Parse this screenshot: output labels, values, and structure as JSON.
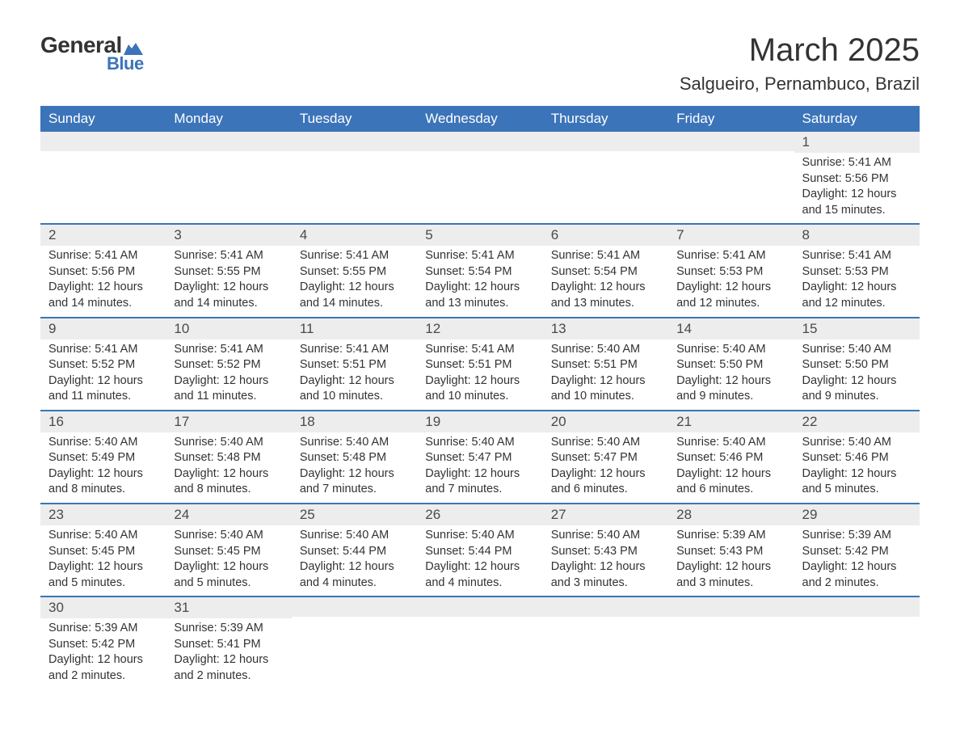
{
  "logo": {
    "text1": "General",
    "text2": "Blue",
    "shape_color": "#3b74b9"
  },
  "title": "March 2025",
  "location": "Salgueiro, Pernambuco, Brazil",
  "colors": {
    "header_bg": "#3b74b9",
    "header_text": "#ffffff",
    "daynum_bg": "#ededed",
    "row_border": "#3b74b9",
    "body_text": "#333333"
  },
  "typography": {
    "title_fontsize": 40,
    "location_fontsize": 22,
    "dayhead_fontsize": 17,
    "daynum_fontsize": 17,
    "body_fontsize": 14.5,
    "font_family": "Arial, Helvetica, sans-serif"
  },
  "day_headers": [
    "Sunday",
    "Monday",
    "Tuesday",
    "Wednesday",
    "Thursday",
    "Friday",
    "Saturday"
  ],
  "weeks": [
    [
      {
        "n": "",
        "sunrise": "",
        "sunset": "",
        "daylight": ""
      },
      {
        "n": "",
        "sunrise": "",
        "sunset": "",
        "daylight": ""
      },
      {
        "n": "",
        "sunrise": "",
        "sunset": "",
        "daylight": ""
      },
      {
        "n": "",
        "sunrise": "",
        "sunset": "",
        "daylight": ""
      },
      {
        "n": "",
        "sunrise": "",
        "sunset": "",
        "daylight": ""
      },
      {
        "n": "",
        "sunrise": "",
        "sunset": "",
        "daylight": ""
      },
      {
        "n": "1",
        "sunrise": "Sunrise: 5:41 AM",
        "sunset": "Sunset: 5:56 PM",
        "daylight": "Daylight: 12 hours and 15 minutes."
      }
    ],
    [
      {
        "n": "2",
        "sunrise": "Sunrise: 5:41 AM",
        "sunset": "Sunset: 5:56 PM",
        "daylight": "Daylight: 12 hours and 14 minutes."
      },
      {
        "n": "3",
        "sunrise": "Sunrise: 5:41 AM",
        "sunset": "Sunset: 5:55 PM",
        "daylight": "Daylight: 12 hours and 14 minutes."
      },
      {
        "n": "4",
        "sunrise": "Sunrise: 5:41 AM",
        "sunset": "Sunset: 5:55 PM",
        "daylight": "Daylight: 12 hours and 14 minutes."
      },
      {
        "n": "5",
        "sunrise": "Sunrise: 5:41 AM",
        "sunset": "Sunset: 5:54 PM",
        "daylight": "Daylight: 12 hours and 13 minutes."
      },
      {
        "n": "6",
        "sunrise": "Sunrise: 5:41 AM",
        "sunset": "Sunset: 5:54 PM",
        "daylight": "Daylight: 12 hours and 13 minutes."
      },
      {
        "n": "7",
        "sunrise": "Sunrise: 5:41 AM",
        "sunset": "Sunset: 5:53 PM",
        "daylight": "Daylight: 12 hours and 12 minutes."
      },
      {
        "n": "8",
        "sunrise": "Sunrise: 5:41 AM",
        "sunset": "Sunset: 5:53 PM",
        "daylight": "Daylight: 12 hours and 12 minutes."
      }
    ],
    [
      {
        "n": "9",
        "sunrise": "Sunrise: 5:41 AM",
        "sunset": "Sunset: 5:52 PM",
        "daylight": "Daylight: 12 hours and 11 minutes."
      },
      {
        "n": "10",
        "sunrise": "Sunrise: 5:41 AM",
        "sunset": "Sunset: 5:52 PM",
        "daylight": "Daylight: 12 hours and 11 minutes."
      },
      {
        "n": "11",
        "sunrise": "Sunrise: 5:41 AM",
        "sunset": "Sunset: 5:51 PM",
        "daylight": "Daylight: 12 hours and 10 minutes."
      },
      {
        "n": "12",
        "sunrise": "Sunrise: 5:41 AM",
        "sunset": "Sunset: 5:51 PM",
        "daylight": "Daylight: 12 hours and 10 minutes."
      },
      {
        "n": "13",
        "sunrise": "Sunrise: 5:40 AM",
        "sunset": "Sunset: 5:51 PM",
        "daylight": "Daylight: 12 hours and 10 minutes."
      },
      {
        "n": "14",
        "sunrise": "Sunrise: 5:40 AM",
        "sunset": "Sunset: 5:50 PM",
        "daylight": "Daylight: 12 hours and 9 minutes."
      },
      {
        "n": "15",
        "sunrise": "Sunrise: 5:40 AM",
        "sunset": "Sunset: 5:50 PM",
        "daylight": "Daylight: 12 hours and 9 minutes."
      }
    ],
    [
      {
        "n": "16",
        "sunrise": "Sunrise: 5:40 AM",
        "sunset": "Sunset: 5:49 PM",
        "daylight": "Daylight: 12 hours and 8 minutes."
      },
      {
        "n": "17",
        "sunrise": "Sunrise: 5:40 AM",
        "sunset": "Sunset: 5:48 PM",
        "daylight": "Daylight: 12 hours and 8 minutes."
      },
      {
        "n": "18",
        "sunrise": "Sunrise: 5:40 AM",
        "sunset": "Sunset: 5:48 PM",
        "daylight": "Daylight: 12 hours and 7 minutes."
      },
      {
        "n": "19",
        "sunrise": "Sunrise: 5:40 AM",
        "sunset": "Sunset: 5:47 PM",
        "daylight": "Daylight: 12 hours and 7 minutes."
      },
      {
        "n": "20",
        "sunrise": "Sunrise: 5:40 AM",
        "sunset": "Sunset: 5:47 PM",
        "daylight": "Daylight: 12 hours and 6 minutes."
      },
      {
        "n": "21",
        "sunrise": "Sunrise: 5:40 AM",
        "sunset": "Sunset: 5:46 PM",
        "daylight": "Daylight: 12 hours and 6 minutes."
      },
      {
        "n": "22",
        "sunrise": "Sunrise: 5:40 AM",
        "sunset": "Sunset: 5:46 PM",
        "daylight": "Daylight: 12 hours and 5 minutes."
      }
    ],
    [
      {
        "n": "23",
        "sunrise": "Sunrise: 5:40 AM",
        "sunset": "Sunset: 5:45 PM",
        "daylight": "Daylight: 12 hours and 5 minutes."
      },
      {
        "n": "24",
        "sunrise": "Sunrise: 5:40 AM",
        "sunset": "Sunset: 5:45 PM",
        "daylight": "Daylight: 12 hours and 5 minutes."
      },
      {
        "n": "25",
        "sunrise": "Sunrise: 5:40 AM",
        "sunset": "Sunset: 5:44 PM",
        "daylight": "Daylight: 12 hours and 4 minutes."
      },
      {
        "n": "26",
        "sunrise": "Sunrise: 5:40 AM",
        "sunset": "Sunset: 5:44 PM",
        "daylight": "Daylight: 12 hours and 4 minutes."
      },
      {
        "n": "27",
        "sunrise": "Sunrise: 5:40 AM",
        "sunset": "Sunset: 5:43 PM",
        "daylight": "Daylight: 12 hours and 3 minutes."
      },
      {
        "n": "28",
        "sunrise": "Sunrise: 5:39 AM",
        "sunset": "Sunset: 5:43 PM",
        "daylight": "Daylight: 12 hours and 3 minutes."
      },
      {
        "n": "29",
        "sunrise": "Sunrise: 5:39 AM",
        "sunset": "Sunset: 5:42 PM",
        "daylight": "Daylight: 12 hours and 2 minutes."
      }
    ],
    [
      {
        "n": "30",
        "sunrise": "Sunrise: 5:39 AM",
        "sunset": "Sunset: 5:42 PM",
        "daylight": "Daylight: 12 hours and 2 minutes."
      },
      {
        "n": "31",
        "sunrise": "Sunrise: 5:39 AM",
        "sunset": "Sunset: 5:41 PM",
        "daylight": "Daylight: 12 hours and 2 minutes."
      },
      {
        "n": "",
        "sunrise": "",
        "sunset": "",
        "daylight": ""
      },
      {
        "n": "",
        "sunrise": "",
        "sunset": "",
        "daylight": ""
      },
      {
        "n": "",
        "sunrise": "",
        "sunset": "",
        "daylight": ""
      },
      {
        "n": "",
        "sunrise": "",
        "sunset": "",
        "daylight": ""
      },
      {
        "n": "",
        "sunrise": "",
        "sunset": "",
        "daylight": ""
      }
    ]
  ]
}
